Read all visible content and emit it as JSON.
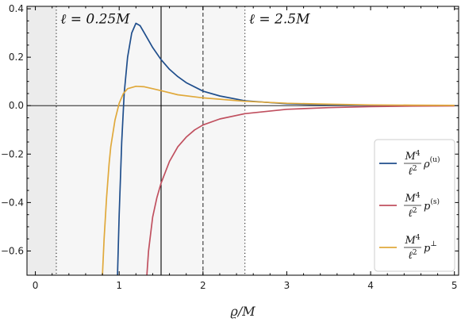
{
  "chart_data": {
    "type": "line",
    "xlabel": "ϱ/M",
    "ylabel": "",
    "xlim": [
      -0.1,
      5.05
    ],
    "ylim": [
      -0.7,
      0.41
    ],
    "x_ticks": [
      0,
      1,
      2,
      3,
      4,
      5
    ],
    "y_ticks": [
      -0.6,
      -0.4,
      -0.2,
      0.0,
      0.2,
      0.4
    ],
    "x_tick_labels": [
      "0",
      "1",
      "2",
      "3",
      "4",
      "5"
    ],
    "y_tick_labels": [
      "−0.6",
      "−0.4",
      "−0.2",
      "0.0",
      "0.2",
      "0.4"
    ],
    "shaded_regions": [
      {
        "x": [
          -0.1,
          0.25
        ],
        "color": "#ececec"
      },
      {
        "x": [
          0.25,
          2.5
        ],
        "color": "#f6f6f6"
      }
    ],
    "vertical_lines": [
      {
        "x": 0.25,
        "style": "dotted"
      },
      {
        "x": 1.5,
        "style": "solid"
      },
      {
        "x": 2.0,
        "style": "dashed"
      },
      {
        "x": 2.5,
        "style": "dotted"
      }
    ],
    "annotations": [
      {
        "text": "ℓ = 0.25M",
        "x": 0.3,
        "y": 0.34
      },
      {
        "text": "ℓ = 2.5M",
        "x": 2.55,
        "y": 0.34
      }
    ],
    "legend": {
      "placement": "bottom-right"
    },
    "series": [
      {
        "name": "M⁴/ℓ² ρ^(u)",
        "color": "#1f4e8c",
        "x": [
          0.98,
          1.0,
          1.03,
          1.06,
          1.1,
          1.15,
          1.2,
          1.25,
          1.3,
          1.35,
          1.4,
          1.5,
          1.6,
          1.7,
          1.8,
          2.0,
          2.2,
          2.5,
          3.0,
          3.5,
          4.0,
          4.5,
          5.0
        ],
        "y": [
          -0.7,
          -0.45,
          -0.15,
          0.05,
          0.2,
          0.3,
          0.34,
          0.33,
          0.3,
          0.27,
          0.24,
          0.19,
          0.15,
          0.12,
          0.095,
          0.06,
          0.04,
          0.02,
          0.008,
          0.003,
          0.0015,
          0.0008,
          0.0004
        ]
      },
      {
        "name": "M⁴/ℓ² p^(s)",
        "color": "#c0505f",
        "x": [
          1.33,
          1.35,
          1.4,
          1.45,
          1.5,
          1.6,
          1.7,
          1.8,
          1.9,
          2.0,
          2.2,
          2.5,
          3.0,
          3.5,
          4.0,
          4.5,
          5.0
        ],
        "y": [
          -0.7,
          -0.6,
          -0.46,
          -0.38,
          -0.32,
          -0.23,
          -0.17,
          -0.13,
          -0.1,
          -0.08,
          -0.055,
          -0.033,
          -0.015,
          -0.008,
          -0.004,
          -0.002,
          -0.001
        ]
      },
      {
        "name": "M⁴/ℓ² p^⊥",
        "color": "#e0a93b",
        "x": [
          0.8,
          0.82,
          0.85,
          0.88,
          0.9,
          0.95,
          1.0,
          1.05,
          1.1,
          1.2,
          1.3,
          1.4,
          1.5,
          1.7,
          2.0,
          2.5,
          3.0,
          3.5,
          4.0,
          4.5,
          5.0
        ],
        "y": [
          -0.7,
          -0.55,
          -0.38,
          -0.24,
          -0.17,
          -0.06,
          0.01,
          0.05,
          0.07,
          0.08,
          0.078,
          0.07,
          0.062,
          0.045,
          0.032,
          0.018,
          0.01,
          0.006,
          0.003,
          0.002,
          0.001
        ]
      }
    ]
  },
  "legend_items": [
    {
      "num": "M",
      "sup": "4",
      "den": "ℓ",
      "densup": "2",
      "sym": "ρ",
      "symsup": "(u)"
    },
    {
      "num": "M",
      "sup": "4",
      "den": "ℓ",
      "densup": "2",
      "sym": "p",
      "symsup": "(s)"
    },
    {
      "num": "M",
      "sup": "4",
      "den": "ℓ",
      "densup": "2",
      "sym": "p",
      "symsup": "⊥"
    }
  ]
}
